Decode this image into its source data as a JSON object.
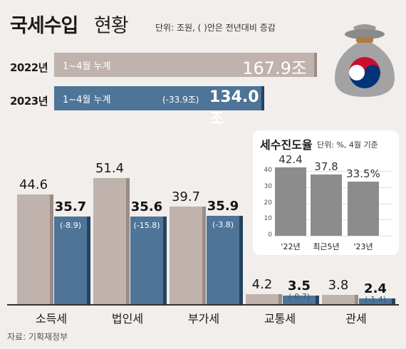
{
  "header": {
    "title_main": "국세수입",
    "title_sub": "현황",
    "unit": "단위: 조원, ( )안은 전년대비 증감"
  },
  "colors": {
    "prev_year": "#c0b3ad",
    "prev_year_side": "#9c8c85",
    "curr_year": "#4e7497",
    "curr_year_side": "#24435f",
    "inset_bar": "#8c8c8c",
    "background": "#f1eeec"
  },
  "icon": "money-bag-icon",
  "cumulative": {
    "period_label": "1~4월 누계",
    "y2022": {
      "year_label": "2022년",
      "value": "167.9조",
      "value_num": 167.9
    },
    "y2023": {
      "year_label": "2023년",
      "value": "134.0조",
      "value_num": 134.0,
      "change": "(-33.9조)"
    }
  },
  "chart_data": [
    {
      "type": "bar",
      "title": "국세수입 현황",
      "categories": [
        "소득세",
        "법인세",
        "부가세",
        "교통세",
        "관세"
      ],
      "series": [
        {
          "name": "2022년",
          "values": [
            44.6,
            51.4,
            39.7,
            4.2,
            3.8
          ],
          "labels": [
            "44.6",
            "51.4",
            "39.7",
            "4.2",
            "3.8"
          ]
        },
        {
          "name": "2023년",
          "values": [
            35.7,
            35.6,
            35.9,
            3.5,
            2.4
          ],
          "labels": [
            "35.7",
            "35.6",
            "35.9",
            "3.5",
            "2.4"
          ]
        }
      ],
      "changes": [
        "(-8.9)",
        "(-15.8)",
        "(-3.8)",
        "(-0.7)",
        "(-1.4)"
      ],
      "ylim": [
        0,
        60
      ]
    },
    {
      "type": "bar",
      "title": "세수진도율",
      "unit": "단위: %, 4월 기준",
      "categories": [
        "'22년",
        "최근5년",
        "'23년"
      ],
      "values": [
        42.4,
        37.8,
        33.5
      ],
      "labels": [
        "42.4",
        "37.8",
        "33.5%"
      ],
      "yticks": [
        "0",
        "10",
        "20",
        "30",
        "40"
      ],
      "ylim": [
        0,
        45
      ]
    }
  ],
  "source": "자료: 기획재정부"
}
